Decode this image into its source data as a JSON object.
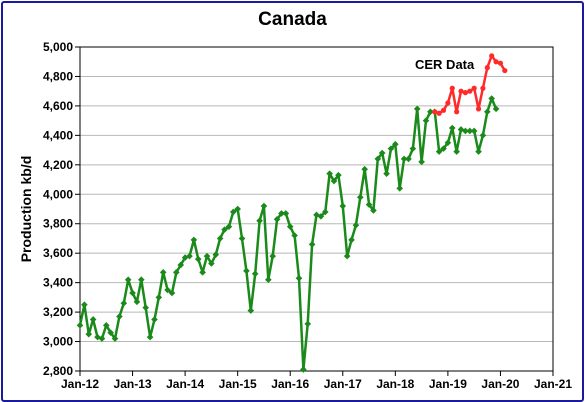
{
  "chart_data": {
    "type": "line",
    "title": "Canada",
    "ylabel": "Production kb/d",
    "xlabel": "",
    "ylim": [
      2800,
      5000
    ],
    "yticks": [
      2800,
      3000,
      3200,
      3400,
      3600,
      3800,
      4000,
      4200,
      4400,
      4600,
      4800,
      5000
    ],
    "ytick_labels": [
      "2,800",
      "3,000",
      "3,200",
      "3,400",
      "3,600",
      "3,800",
      "4,000",
      "4,200",
      "4,400",
      "4,600",
      "4,800",
      "5,000"
    ],
    "xlim": [
      "2012-01",
      "2021-01"
    ],
    "xtick_labels": [
      "Jan-12",
      "Jan-13",
      "Jan-14",
      "Jan-15",
      "Jan-16",
      "Jan-17",
      "Jan-18",
      "Jan-19",
      "Jan-20",
      "Jan-21"
    ],
    "grid": true,
    "annotations": [
      {
        "text": "CER Data"
      }
    ],
    "series": [
      {
        "color": "#1a8a1a",
        "marker": "diamond",
        "start": "2012-01",
        "values": [
          3110,
          3250,
          3050,
          3150,
          3030,
          3020,
          3110,
          3060,
          3020,
          3170,
          3260,
          3420,
          3330,
          3270,
          3420,
          3230,
          3030,
          3150,
          3300,
          3470,
          3350,
          3330,
          3470,
          3520,
          3570,
          3580,
          3690,
          3560,
          3470,
          3580,
          3530,
          3590,
          3700,
          3760,
          3780,
          3880,
          3900,
          3700,
          3480,
          3210,
          3460,
          3820,
          3920,
          3420,
          3580,
          3830,
          3870,
          3870,
          3780,
          3720,
          3430,
          2810,
          3120,
          3660,
          3860,
          3850,
          3880,
          4140,
          4090,
          4130,
          3920,
          3580,
          3690,
          3790,
          3980,
          4170,
          3930,
          3890,
          4240,
          4280,
          4140,
          4310,
          4340,
          4040,
          4240,
          4240,
          4310,
          4580,
          4220,
          4500,
          4560,
          4560,
          4290,
          4310,
          4350,
          4450,
          4290,
          4440,
          4430,
          4430,
          4430,
          4290,
          4400,
          4560,
          4650,
          4580
        ]
      },
      {
        "color": "#ff2a2a",
        "marker": "circle",
        "start": "2018-10",
        "values": [
          4560,
          4550,
          4570,
          4620,
          4720,
          4560,
          4700,
          4690,
          4700,
          4720,
          4580,
          4720,
          4860,
          4940,
          4900,
          4890,
          4840
        ]
      }
    ]
  }
}
